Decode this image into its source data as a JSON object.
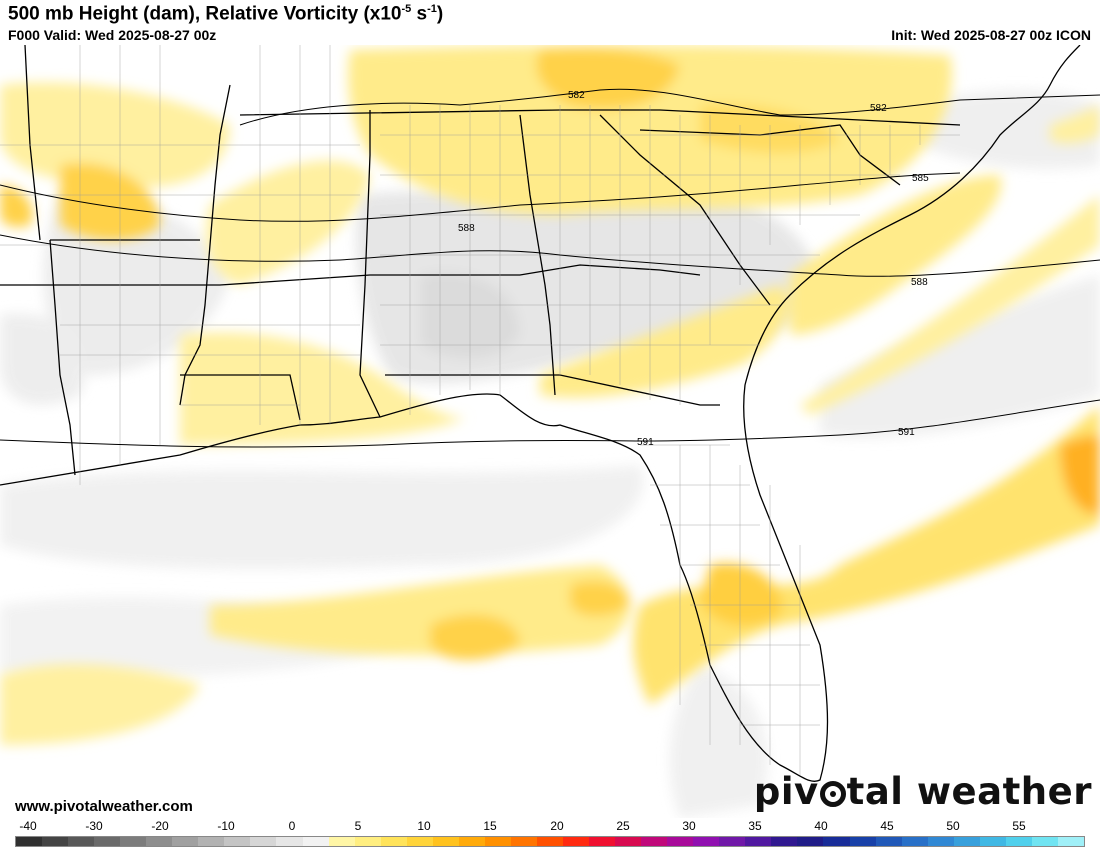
{
  "header": {
    "title_main": "500 mb Height (dam), Relative Vorticity (x10",
    "title_exp1": "-5",
    "title_mid": " s",
    "title_exp2": "-1",
    "title_end": ")",
    "valid": "F000 Valid: Wed 2025-08-27 00z",
    "init": "Init: Wed 2025-08-27 00z ICON"
  },
  "footer": {
    "website": "www.pivotalweather.com",
    "brand_left": "piv",
    "brand_right": "tal weather"
  },
  "contour_labels": [
    "582",
    "582",
    "585",
    "588",
    "588",
    "591",
    "591"
  ],
  "colorbar": {
    "ticks": [
      "-40",
      "-30",
      "-20",
      "-10",
      "0",
      "5",
      "10",
      "15",
      "20",
      "25",
      "30",
      "35",
      "40",
      "45",
      "50",
      "55"
    ],
    "colors": [
      "#303030",
      "#444444",
      "#585858",
      "#6a6a6a",
      "#7c7c7c",
      "#8e8e8e",
      "#a0a0a0",
      "#b2b2b2",
      "#c4c4c4",
      "#d6d6d6",
      "#e6e6e6",
      "#f2f2f2",
      "#fff6a6",
      "#ffee80",
      "#ffe35a",
      "#ffd43a",
      "#ffc21e",
      "#ffaa0a",
      "#ff9000",
      "#ff7400",
      "#ff5000",
      "#ff2a10",
      "#f01030",
      "#d80a50",
      "#c0087a",
      "#a80a9a",
      "#9010b0",
      "#7018a8",
      "#5018a0",
      "#301890",
      "#201c88",
      "#182c98",
      "#1840a8",
      "#2058b8",
      "#2870c8",
      "#3088d4",
      "#38a0dc",
      "#40b8e4",
      "#50d0ec",
      "#70e4f2",
      "#a0f0f8"
    ]
  }
}
